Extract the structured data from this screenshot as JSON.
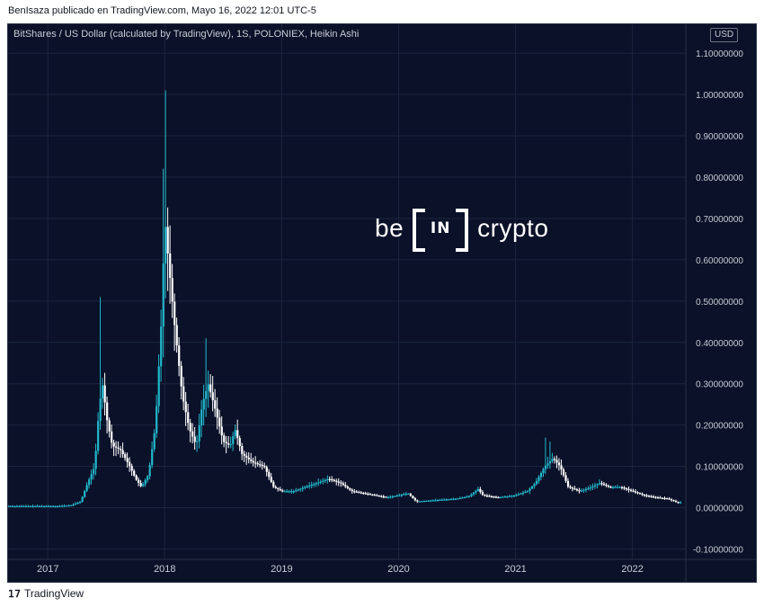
{
  "caption": "BenIsaza publicado en TradingView.com, Mayo 16, 2022 12:01 UTC-5",
  "chart_title": "BitShares / US Dollar (calculated by TradingView), 1S, POLONIEX, Heikin Ashi",
  "currency_badge": "USD",
  "watermark": {
    "left": "be",
    "box": "IN",
    "right": "crypto"
  },
  "footer": {
    "logo_icon": "tradingview-logo-icon",
    "brand": "TradingView"
  },
  "colors": {
    "background": "#0a1128",
    "grid": "#1c2540",
    "up": "#22b8cc",
    "down": "#ffffff",
    "axis_text": "#c9cdd6"
  },
  "chart_data": {
    "type": "line",
    "style": "Heikin Ashi candles",
    "symbol": "BTS/USD",
    "interval": "1S",
    "exchange": "POLONIEX",
    "y_axis_labels": [
      "-0.10000000",
      "0.00000000",
      "0.10000000",
      "0.20000000",
      "0.30000000",
      "0.40000000",
      "0.50000000",
      "0.60000000",
      "0.70000000",
      "0.80000000",
      "0.90000000",
      "1.00000000",
      "1.10000000"
    ],
    "y_ticks": [
      -0.1,
      0,
      0.1,
      0.2,
      0.3,
      0.4,
      0.5,
      0.6,
      0.7,
      0.8,
      0.9,
      1.0,
      1.1
    ],
    "ylim": [
      -0.125,
      1.17
    ],
    "x_axis_labels": [
      {
        "label": "2017",
        "t": 2017.0
      },
      {
        "label": "2018",
        "t": 2018.0
      },
      {
        "label": "2019",
        "t": 2019.0
      },
      {
        "label": "2020",
        "t": 2020.0
      },
      {
        "label": "2021",
        "t": 2021.0
      },
      {
        "label": "2022",
        "t": 2022.0
      }
    ],
    "xlim": [
      2016.66,
      2022.41
    ],
    "grid": true,
    "price_points": [
      {
        "t": 2016.66,
        "v": 0.004
      },
      {
        "t": 2016.9,
        "v": 0.004
      },
      {
        "t": 2017.1,
        "v": 0.004
      },
      {
        "t": 2017.2,
        "v": 0.006
      },
      {
        "t": 2017.28,
        "v": 0.015
      },
      {
        "t": 2017.34,
        "v": 0.06
      },
      {
        "t": 2017.4,
        "v": 0.1
      },
      {
        "t": 2017.44,
        "v": 0.25
      },
      {
        "t": 2017.47,
        "v": 0.3
      },
      {
        "t": 2017.5,
        "v": 0.22
      },
      {
        "t": 2017.55,
        "v": 0.15
      },
      {
        "t": 2017.62,
        "v": 0.14
      },
      {
        "t": 2017.7,
        "v": 0.1
      },
      {
        "t": 2017.75,
        "v": 0.07
      },
      {
        "t": 2017.8,
        "v": 0.05
      },
      {
        "t": 2017.86,
        "v": 0.08
      },
      {
        "t": 2017.92,
        "v": 0.2
      },
      {
        "t": 2017.97,
        "v": 0.45
      },
      {
        "t": 2018.0,
        "v": 0.7
      },
      {
        "t": 2018.03,
        "v": 0.6
      },
      {
        "t": 2018.08,
        "v": 0.45
      },
      {
        "t": 2018.15,
        "v": 0.27
      },
      {
        "t": 2018.21,
        "v": 0.19
      },
      {
        "t": 2018.27,
        "v": 0.15
      },
      {
        "t": 2018.32,
        "v": 0.25
      },
      {
        "t": 2018.37,
        "v": 0.3
      },
      {
        "t": 2018.42,
        "v": 0.25
      },
      {
        "t": 2018.5,
        "v": 0.16
      },
      {
        "t": 2018.56,
        "v": 0.15
      },
      {
        "t": 2018.6,
        "v": 0.19
      },
      {
        "t": 2018.66,
        "v": 0.13
      },
      {
        "t": 2018.75,
        "v": 0.11
      },
      {
        "t": 2018.85,
        "v": 0.1
      },
      {
        "t": 2018.93,
        "v": 0.05
      },
      {
        "t": 2019.0,
        "v": 0.04
      },
      {
        "t": 2019.1,
        "v": 0.04
      },
      {
        "t": 2019.2,
        "v": 0.05
      },
      {
        "t": 2019.3,
        "v": 0.06
      },
      {
        "t": 2019.4,
        "v": 0.07
      },
      {
        "t": 2019.5,
        "v": 0.06
      },
      {
        "t": 2019.6,
        "v": 0.04
      },
      {
        "t": 2019.7,
        "v": 0.035
      },
      {
        "t": 2019.8,
        "v": 0.03
      },
      {
        "t": 2019.9,
        "v": 0.025
      },
      {
        "t": 2020.0,
        "v": 0.03
      },
      {
        "t": 2020.08,
        "v": 0.035
      },
      {
        "t": 2020.15,
        "v": 0.015
      },
      {
        "t": 2020.3,
        "v": 0.018
      },
      {
        "t": 2020.5,
        "v": 0.022
      },
      {
        "t": 2020.6,
        "v": 0.028
      },
      {
        "t": 2020.68,
        "v": 0.045
      },
      {
        "t": 2020.72,
        "v": 0.03
      },
      {
        "t": 2020.85,
        "v": 0.025
      },
      {
        "t": 2021.0,
        "v": 0.03
      },
      {
        "t": 2021.1,
        "v": 0.04
      },
      {
        "t": 2021.17,
        "v": 0.06
      },
      {
        "t": 2021.25,
        "v": 0.1
      },
      {
        "t": 2021.32,
        "v": 0.12
      },
      {
        "t": 2021.38,
        "v": 0.1
      },
      {
        "t": 2021.45,
        "v": 0.05
      },
      {
        "t": 2021.55,
        "v": 0.04
      },
      {
        "t": 2021.65,
        "v": 0.05
      },
      {
        "t": 2021.72,
        "v": 0.06
      },
      {
        "t": 2021.8,
        "v": 0.05
      },
      {
        "t": 2021.9,
        "v": 0.05
      },
      {
        "t": 2022.0,
        "v": 0.04
      },
      {
        "t": 2022.1,
        "v": 0.03
      },
      {
        "t": 2022.2,
        "v": 0.025
      },
      {
        "t": 2022.3,
        "v": 0.022
      },
      {
        "t": 2022.38,
        "v": 0.013
      }
    ],
    "wick_highs": [
      {
        "t": 2017.45,
        "v": 0.51
      },
      {
        "t": 2017.98,
        "v": 0.82
      },
      {
        "t": 2018.0,
        "v": 1.01
      },
      {
        "t": 2018.35,
        "v": 0.41
      },
      {
        "t": 2021.26,
        "v": 0.17
      },
      {
        "t": 2021.3,
        "v": 0.16
      }
    ]
  }
}
